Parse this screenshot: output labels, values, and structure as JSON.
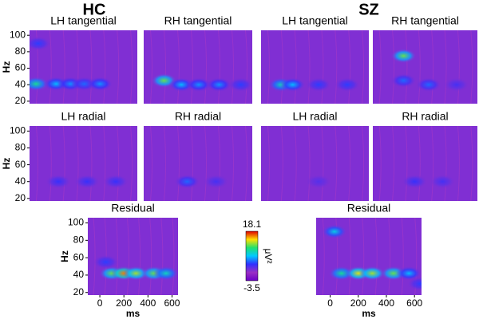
{
  "headers": [
    "HC",
    "SZ"
  ],
  "chart_data": [
    {
      "type": "heatmap",
      "title": "LH tangential",
      "ylabel": "Hz",
      "ylim": [
        17,
        106
      ],
      "yticks": [
        20,
        40,
        60,
        80,
        100
      ],
      "xlim": [
        -100,
        650
      ],
      "peaks": [
        [
          -55,
          41,
          10
        ],
        [
          85,
          41,
          7
        ],
        [
          185,
          41,
          6
        ],
        [
          280,
          41,
          5
        ],
        [
          390,
          41,
          6
        ],
        [
          -40,
          90,
          4
        ]
      ]
    },
    {
      "type": "heatmap",
      "title": "RH tangential",
      "ylim": [
        17,
        106
      ],
      "xlim": [
        -100,
        650
      ],
      "peaks": [
        [
          40,
          45,
          12
        ],
        [
          160,
          40,
          7
        ],
        [
          280,
          40,
          6
        ],
        [
          420,
          40,
          6
        ],
        [
          570,
          40,
          4
        ]
      ]
    },
    {
      "type": "heatmap",
      "title": "LH tangential",
      "ylim": [
        17,
        106
      ],
      "xlim": [
        -100,
        650
      ],
      "peaks": [
        [
          40,
          40,
          9
        ],
        [
          120,
          40,
          7
        ],
        [
          300,
          40,
          4
        ],
        [
          500,
          40,
          4
        ]
      ]
    },
    {
      "type": "heatmap",
      "title": "RH tangential",
      "ylim": [
        17,
        106
      ],
      "xlim": [
        -100,
        650
      ],
      "peaks": [
        [
          120,
          75,
          12
        ],
        [
          120,
          45,
          5
        ],
        [
          300,
          40,
          5
        ],
        [
          500,
          40,
          3
        ]
      ]
    },
    {
      "type": "heatmap",
      "title": "LH radial",
      "ylabel": "Hz",
      "ylim": [
        17,
        106
      ],
      "yticks": [
        20,
        40,
        60,
        80,
        100
      ],
      "xlim": [
        -100,
        650
      ],
      "peaks": [
        [
          100,
          40,
          3.5
        ],
        [
          300,
          40,
          3.5
        ],
        [
          500,
          40,
          3.5
        ]
      ]
    },
    {
      "type": "heatmap",
      "title": "RH radial",
      "ylim": [
        17,
        106
      ],
      "xlim": [
        -100,
        650
      ],
      "peaks": [
        [
          200,
          40,
          5
        ],
        [
          400,
          40,
          3
        ]
      ]
    },
    {
      "type": "heatmap",
      "title": "LH radial",
      "ylim": [
        17,
        106
      ],
      "xlim": [
        -100,
        650
      ],
      "peaks": [
        [
          300,
          40,
          2.5
        ]
      ]
    },
    {
      "type": "heatmap",
      "title": "RH radial",
      "ylim": [
        17,
        106
      ],
      "xlim": [
        -100,
        650
      ],
      "peaks": [
        [
          200,
          40,
          3.5
        ],
        [
          400,
          40,
          3
        ]
      ]
    },
    {
      "type": "heatmap",
      "title": "Residual",
      "ylabel": "Hz",
      "ylim": [
        17,
        106
      ],
      "yticks": [
        20,
        40,
        60,
        80,
        100
      ],
      "xlabel": "ms",
      "xlim": [
        -100,
        650
      ],
      "xticks": [
        0,
        200,
        400,
        600
      ],
      "peaks": [
        [
          100,
          42,
          12
        ],
        [
          200,
          42,
          16
        ],
        [
          300,
          42,
          13
        ],
        [
          450,
          42,
          12
        ],
        [
          550,
          42,
          9
        ],
        [
          50,
          55,
          4
        ]
      ]
    },
    {
      "type": "heatmap",
      "title": "Residual",
      "ylim": [
        17,
        106
      ],
      "xlabel": "ms",
      "xlim": [
        -100,
        650
      ],
      "xticks": [
        0,
        200,
        400,
        600
      ],
      "peaks": [
        [
          30,
          90,
          8
        ],
        [
          80,
          42,
          10
        ],
        [
          200,
          42,
          14
        ],
        [
          300,
          42,
          13
        ],
        [
          450,
          42,
          12
        ],
        [
          560,
          42,
          7
        ],
        [
          640,
          30,
          4
        ]
      ]
    },
    {
      "type": "colorbar",
      "clim": [
        -3.5,
        18.1
      ],
      "label": "μV²",
      "colormap": [
        "#6a00c8",
        "#9b2fc4",
        "#3030ff",
        "#00c8ff",
        "#20e070",
        "#ffe000",
        "#e00000"
      ]
    }
  ]
}
